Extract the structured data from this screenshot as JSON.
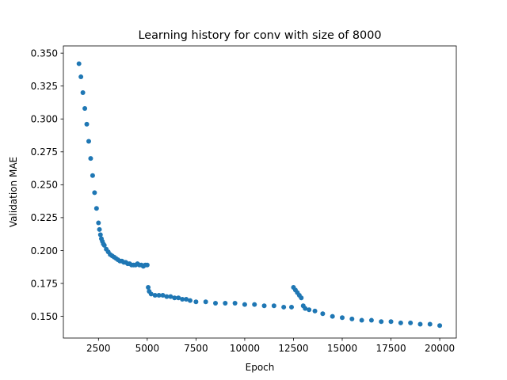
{
  "chart_data": {
    "type": "scatter",
    "title": "Learning history for conv with size of 8000",
    "xlabel": "Epoch",
    "ylabel": "Validation MAE",
    "xlim": [
      700,
      20850
    ],
    "ylim": [
      0.1335,
      0.3555
    ],
    "xticks": [
      2500,
      5000,
      7500,
      10000,
      12500,
      15000,
      17500,
      20000
    ],
    "yticks": [
      0.15,
      0.175,
      0.2,
      0.225,
      0.25,
      0.275,
      0.3,
      0.325,
      0.35
    ],
    "xtick_labels": [
      "2500",
      "5000",
      "7500",
      "10000",
      "12500",
      "15000",
      "17500",
      "20000"
    ],
    "ytick_labels": [
      "0.150",
      "0.175",
      "0.200",
      "0.225",
      "0.250",
      "0.275",
      "0.300",
      "0.325",
      "0.350"
    ],
    "grid": false,
    "marker_color": "#1f77b4",
    "series": [
      {
        "x": [
          1500,
          1600,
          1700,
          1800,
          1900,
          2000,
          2100,
          2200,
          2300,
          2400,
          2500,
          2550,
          2600,
          2650,
          2700,
          2750,
          2800,
          2900,
          3000,
          3100,
          3200,
          3300,
          3400,
          3500,
          3600,
          3700,
          3800,
          3900,
          4000,
          4100,
          4200,
          4300,
          4400,
          4500,
          4600,
          4700,
          4800,
          4900,
          5000,
          5050,
          5100,
          5200,
          5400,
          5600,
          5800,
          6000,
          6200,
          6400,
          6600,
          6800,
          7000,
          7200,
          7500,
          8000,
          8500,
          9000,
          9500,
          10000,
          10500,
          11000,
          11500,
          12000,
          12400,
          12500,
          12600,
          12700,
          12800,
          12900,
          13000,
          13100,
          13300,
          13600,
          14000,
          14500,
          15000,
          15500,
          16000,
          16500,
          17000,
          17500,
          18000,
          18500,
          19000,
          19500,
          20000
        ],
        "y": [
          0.342,
          0.332,
          0.32,
          0.308,
          0.296,
          0.283,
          0.27,
          0.257,
          0.244,
          0.232,
          0.221,
          0.216,
          0.212,
          0.209,
          0.207,
          0.205,
          0.204,
          0.201,
          0.199,
          0.197,
          0.196,
          0.195,
          0.194,
          0.193,
          0.192,
          0.192,
          0.191,
          0.191,
          0.19,
          0.19,
          0.189,
          0.189,
          0.189,
          0.19,
          0.189,
          0.189,
          0.188,
          0.189,
          0.189,
          0.172,
          0.169,
          0.167,
          0.166,
          0.166,
          0.166,
          0.165,
          0.165,
          0.164,
          0.164,
          0.163,
          0.163,
          0.162,
          0.161,
          0.161,
          0.16,
          0.16,
          0.16,
          0.159,
          0.159,
          0.158,
          0.158,
          0.157,
          0.157,
          0.172,
          0.17,
          0.168,
          0.166,
          0.164,
          0.158,
          0.156,
          0.155,
          0.154,
          0.152,
          0.15,
          0.149,
          0.148,
          0.147,
          0.147,
          0.146,
          0.146,
          0.145,
          0.145,
          0.144,
          0.144,
          0.143
        ]
      }
    ]
  }
}
